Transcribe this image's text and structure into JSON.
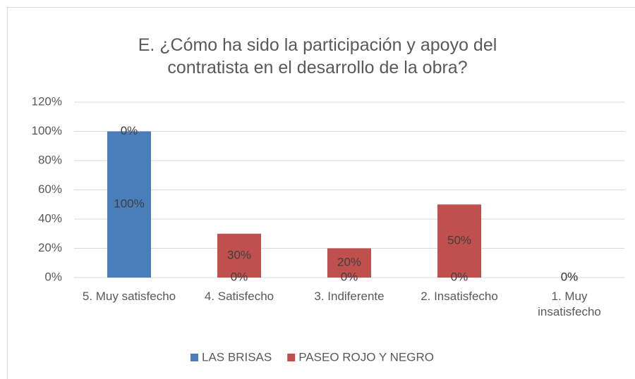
{
  "chart_data": {
    "type": "stacked_bar",
    "title": "E. ¿Cómo ha sido la participación y apoyo del contratista en el desarrollo de la obra?",
    "categories": [
      "5. Muy satisfecho",
      "4. Satisfecho",
      "3. Indiferente",
      "2. Insatisfecho",
      "1. Muy insatisfecho"
    ],
    "series": [
      {
        "name": "LAS BRISAS",
        "color": "#4a7ebb",
        "values": [
          100,
          0,
          0,
          0,
          0
        ],
        "value_labels": [
          "100%",
          "0%",
          "0%",
          "0%",
          "0%"
        ]
      },
      {
        "name": "PASEO ROJO Y NEGRO",
        "color": "#c0504d",
        "values": [
          0,
          30,
          20,
          50,
          0
        ],
        "value_labels": [
          "0%",
          "30%",
          "20%",
          "50%",
          "0%"
        ]
      }
    ],
    "ylim": [
      0,
      120
    ],
    "yticks": [
      {
        "value": 0,
        "label": "0%"
      },
      {
        "value": 20,
        "label": "20%"
      },
      {
        "value": 40,
        "label": "40%"
      },
      {
        "value": 60,
        "label": "60%"
      },
      {
        "value": 80,
        "label": "80%"
      },
      {
        "value": 100,
        "label": "100%"
      },
      {
        "value": 120,
        "label": "120%"
      }
    ],
    "grid": true,
    "legend": "bottom"
  }
}
